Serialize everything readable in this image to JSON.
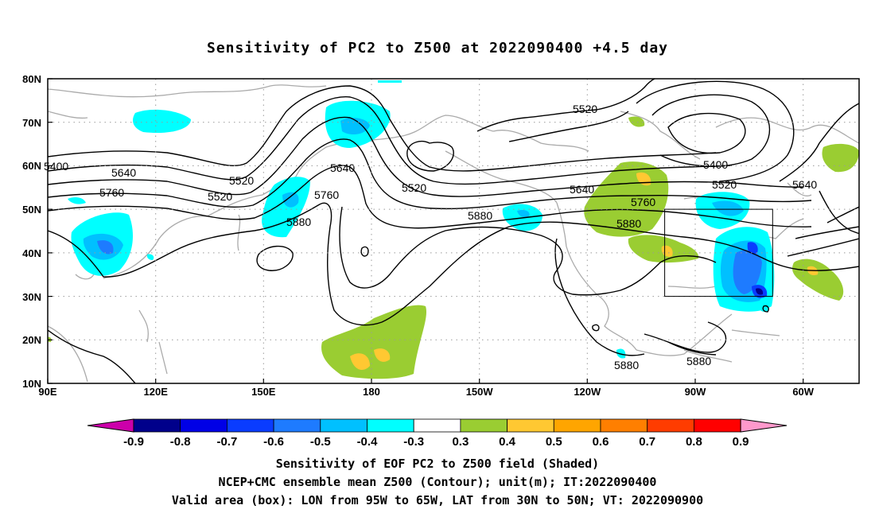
{
  "title": "Sensitivity of PC2 to Z500 at 2022090400 +4.5 day",
  "captions": [
    "Sensitivity of EOF PC2 to Z500 field (Shaded)",
    "NCEP+CMC ensemble mean Z500 (Contour); unit(m); IT:2022090400",
    "Valid area (box): LON from 95W to 65W, LAT from 30N to 50N; VT: 2022090900"
  ],
  "map": {
    "lat_labels": [
      "80N",
      "70N",
      "60N",
      "50N",
      "40N",
      "30N",
      "20N",
      "10N"
    ],
    "lon_labels": [
      "90E",
      "120E",
      "150E",
      "180",
      "150W",
      "120W",
      "90W",
      "60W"
    ],
    "contour_labels": [
      "5400",
      "5520",
      "5640",
      "5760",
      "5880",
      "5400",
      "5520",
      "5640",
      "5760",
      "5880",
      "5520",
      "5640",
      "5520",
      "5640",
      "5760",
      "5880",
      "5400",
      "5520",
      "5640",
      "5880",
      "5880"
    ],
    "valid_box": {
      "lon_west": "95W",
      "lon_east": "65W",
      "lat_south": "30N",
      "lat_north": "50N"
    }
  },
  "colorbar": {
    "labels": [
      "-0.9",
      "-0.8",
      "-0.7",
      "-0.6",
      "-0.5",
      "-0.4",
      "-0.3",
      "0.3",
      "0.4",
      "0.5",
      "0.6",
      "0.7",
      "0.8",
      "0.9"
    ],
    "colors": [
      "#00008b",
      "#0000e6",
      "#0a3cff",
      "#1e7bff",
      "#00c0ff",
      "#00ffff",
      "#ffffff",
      "#9acd32",
      "#ffc832",
      "#ffa500",
      "#ff7f00",
      "#ff3c00",
      "#ff0000"
    ],
    "low_arrow_color": "#cc00aa",
    "high_arrow_color": "#ff99cc"
  }
}
